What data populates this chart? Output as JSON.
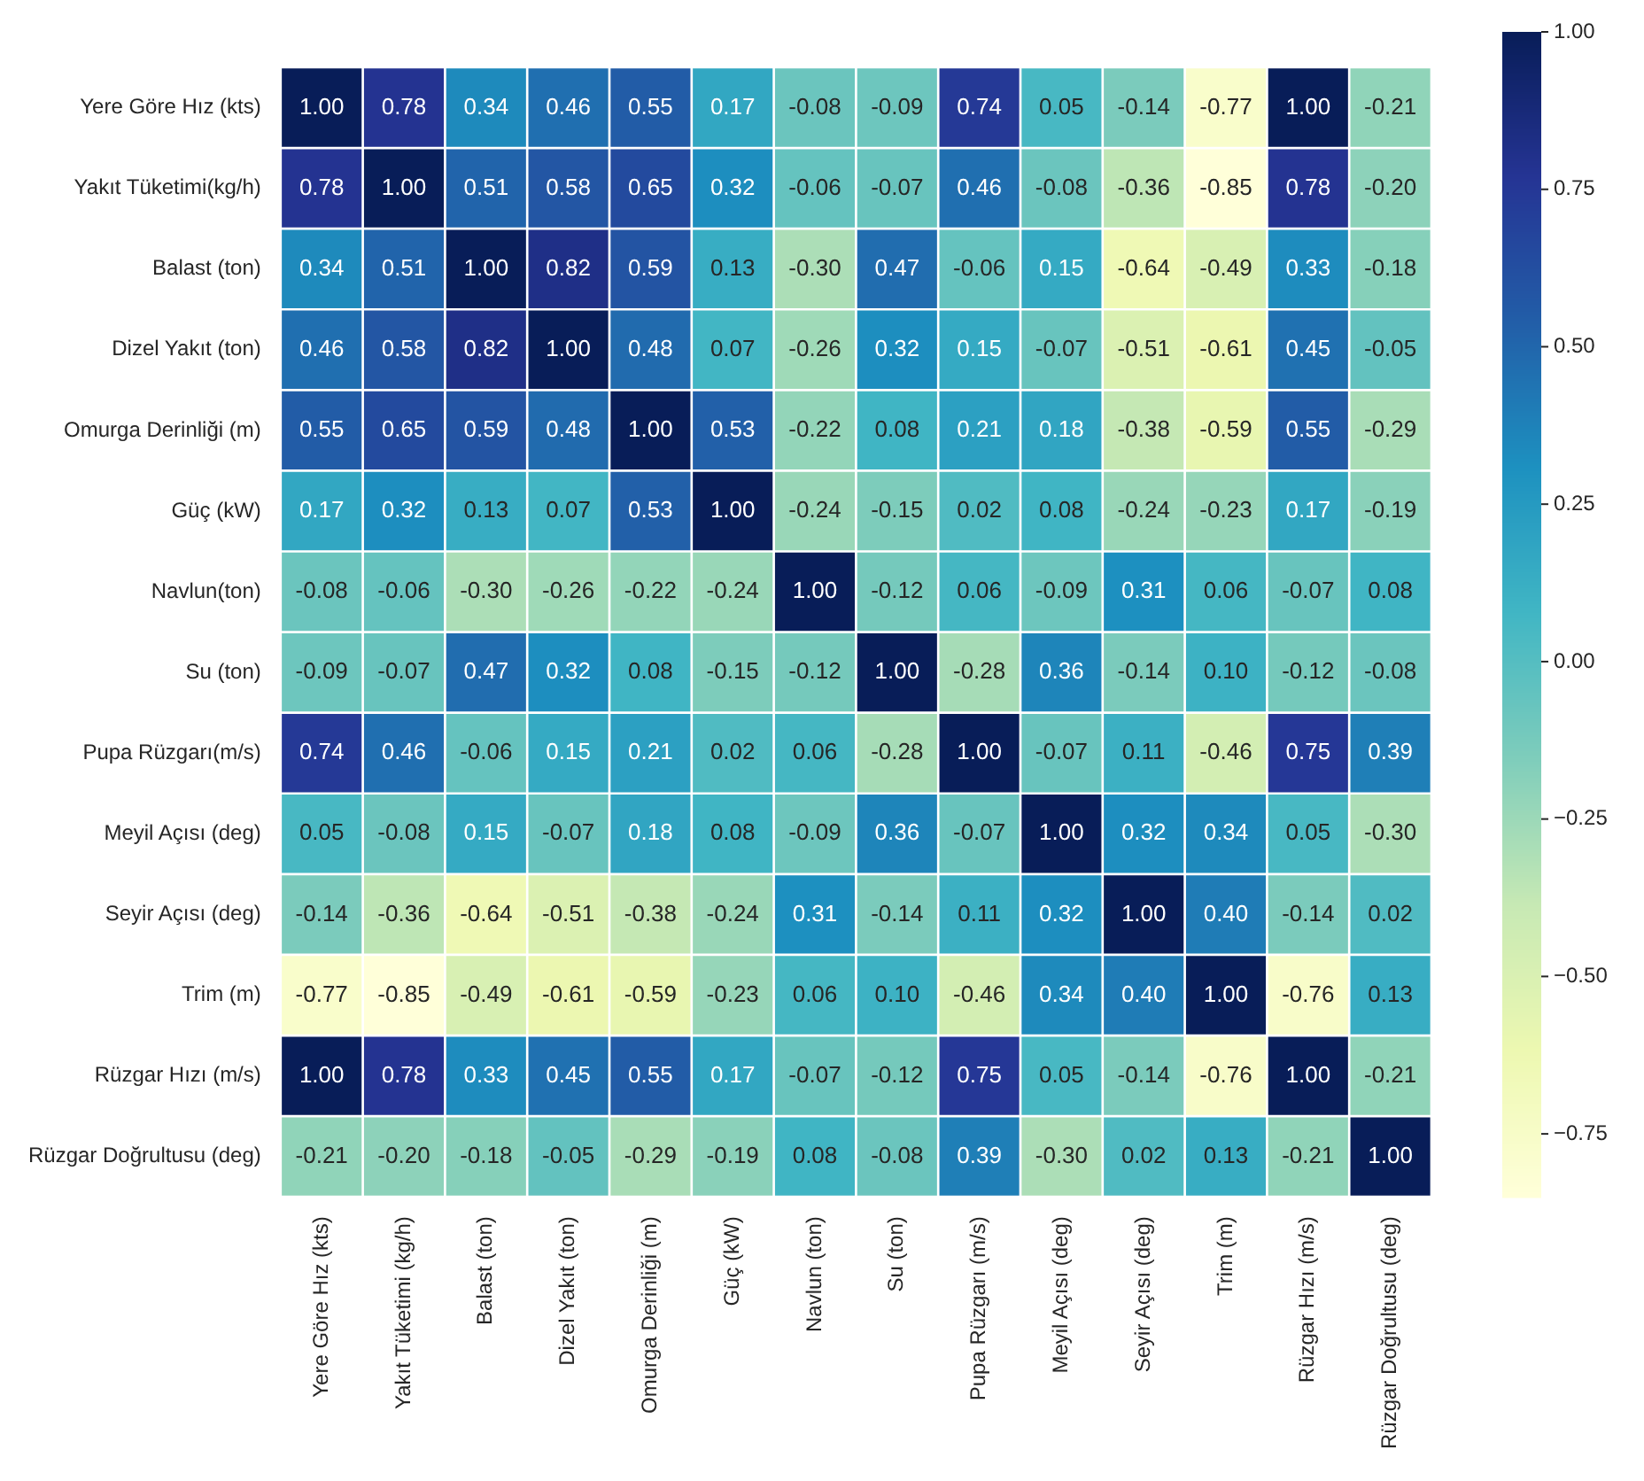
{
  "chart_data": {
    "type": "heatmap",
    "categories": [
      "Yere Göre Hız (kts)",
      "Yakıt Tüketimi (kg/h)",
      "Balast (ton)",
      "Dizel Yakıt (ton)",
      "Omurga Derinliği (m)",
      "Güç (kW)",
      "Navlun (ton)",
      "Su (ton)",
      "Pupa Rüzgarı (m/s)",
      "Meyil Açısı (deg)",
      "Seyir Açısı (deg)",
      "Trim (m)",
      "Rüzgar Hızı (m/s)",
      "Rüzgar Doğrultusu (deg)"
    ],
    "y_categories": [
      "Yere Göre Hız (kts)",
      "Yakıt Tüketimi(kg/h)",
      "Balast (ton)",
      "Dizel Yakıt (ton)",
      "Omurga Derinliği (m)",
      "Güç (kW)",
      "Navlun(ton)",
      "Su (ton)",
      "Pupa Rüzgarı(m/s)",
      "Meyil Açısı (deg)",
      "Seyir Açısı (deg)",
      "Trim (m)",
      "Rüzgar Hızı (m/s)",
      "Rüzgar Doğrultusu (deg)"
    ],
    "cells": [
      [
        1.0,
        0.78,
        0.34,
        0.46,
        0.55,
        0.17,
        -0.08,
        -0.09,
        0.74,
        0.05,
        -0.14,
        -0.77,
        1.0,
        -0.21
      ],
      [
        0.78,
        1.0,
        0.51,
        0.58,
        0.65,
        0.32,
        -0.06,
        -0.07,
        0.46,
        -0.08,
        -0.36,
        -0.85,
        0.78,
        -0.2
      ],
      [
        0.34,
        0.51,
        1.0,
        0.82,
        0.59,
        0.13,
        -0.3,
        0.47,
        -0.06,
        0.15,
        -0.64,
        -0.49,
        0.33,
        -0.18
      ],
      [
        0.46,
        0.58,
        0.82,
        1.0,
        0.48,
        0.07,
        -0.26,
        0.32,
        0.15,
        -0.07,
        -0.51,
        -0.61,
        0.45,
        -0.05
      ],
      [
        0.55,
        0.65,
        0.59,
        0.48,
        1.0,
        0.53,
        -0.22,
        0.08,
        0.21,
        0.18,
        -0.38,
        -0.59,
        0.55,
        -0.29
      ],
      [
        0.17,
        0.32,
        0.13,
        0.07,
        0.53,
        1.0,
        -0.24,
        -0.15,
        0.02,
        0.08,
        -0.24,
        -0.23,
        0.17,
        -0.19
      ],
      [
        -0.08,
        -0.06,
        -0.3,
        -0.26,
        -0.22,
        -0.24,
        1.0,
        -0.12,
        0.06,
        -0.09,
        0.31,
        0.06,
        -0.07,
        0.08
      ],
      [
        -0.09,
        -0.07,
        0.47,
        0.32,
        0.08,
        -0.15,
        -0.12,
        1.0,
        -0.28,
        0.36,
        -0.14,
        0.1,
        -0.12,
        -0.08
      ],
      [
        0.74,
        0.46,
        -0.06,
        0.15,
        0.21,
        0.02,
        0.06,
        -0.28,
        1.0,
        -0.07,
        0.11,
        -0.46,
        0.75,
        0.39
      ],
      [
        0.05,
        -0.08,
        0.15,
        -0.07,
        0.18,
        0.08,
        -0.09,
        0.36,
        -0.07,
        1.0,
        0.32,
        0.34,
        0.05,
        -0.3
      ],
      [
        -0.14,
        -0.36,
        -0.64,
        -0.51,
        -0.38,
        -0.24,
        0.31,
        -0.14,
        0.11,
        0.32,
        1.0,
        0.4,
        -0.14,
        0.02
      ],
      [
        -0.77,
        -0.85,
        -0.49,
        -0.61,
        -0.59,
        -0.23,
        0.06,
        0.1,
        -0.46,
        0.34,
        0.4,
        1.0,
        -0.76,
        0.13
      ],
      [
        1.0,
        0.78,
        0.33,
        0.45,
        0.55,
        0.17,
        -0.07,
        -0.12,
        0.75,
        0.05,
        -0.14,
        -0.76,
        1.0,
        -0.21
      ],
      [
        -0.21,
        -0.2,
        -0.18,
        -0.05,
        -0.29,
        -0.19,
        0.08,
        -0.08,
        0.39,
        -0.3,
        0.02,
        0.13,
        -0.21,
        1.0
      ]
    ],
    "cell_labels": [
      [
        "1.00",
        "0.78",
        "0.34",
        "0.46",
        "0.55",
        "0.17",
        "-0.08",
        "-0.09",
        "0.74",
        "0.05",
        "-0.14",
        "-0.77",
        "1.00",
        "-0.21"
      ],
      [
        "0.78",
        "1.00",
        "0.51",
        "0.58",
        "0.65",
        "0.32",
        "-0.06",
        "-0.07",
        "0.46",
        "-0.08",
        "-0.36",
        "-0.85",
        "0.78",
        "-0.20"
      ],
      [
        "0.34",
        "0.51",
        "1.00",
        "0.82",
        "0.59",
        "0.13",
        "-0.30",
        "0.47",
        "-0.06",
        "0.15",
        "-0.64",
        "-0.49",
        "0.33",
        "-0.18"
      ],
      [
        "0.46",
        "0.58",
        "0.82",
        "1.00",
        "0.48",
        "0.07",
        "-0.26",
        "0.32",
        "0.15",
        "-0.07",
        "-0.51",
        "-0.61",
        "0.45",
        "-0.05"
      ],
      [
        "0.55",
        "0.65",
        "0.59",
        "0.48",
        "1.00",
        "0.53",
        "-0.22",
        "0.08",
        "0.21",
        "0.18",
        "-0.38",
        "-0.59",
        "0.55",
        "-0.29"
      ],
      [
        "0.17",
        "0.32",
        "0.13",
        "0.07",
        "0.53",
        "1.00",
        "-0.24",
        "-0.15",
        "0.02",
        "0.08",
        "-0.24",
        "-0.23",
        "0.17",
        "-0.19"
      ],
      [
        "-0.08",
        "-0.06",
        "-0.30",
        "-0.26",
        "-0.22",
        "-0.24",
        "1.00",
        "-0.12",
        "0.06",
        "-0.09",
        "0.31",
        "0.06",
        "-0.07",
        "0.08"
      ],
      [
        "-0.09",
        "-0.07",
        "0.47",
        "0.32",
        "0.08",
        "-0.15",
        "-0.12",
        "1.00",
        "-0.28",
        "0.36",
        "-0.14",
        "0.10",
        "-0.12",
        "-0.08"
      ],
      [
        "0.74",
        "0.46",
        "-0.06",
        "0.15",
        "0.21",
        "0.02",
        "0.06",
        "-0.28",
        "1.00",
        "-0.07",
        "0.11",
        "-0.46",
        "0.75",
        "0.39"
      ],
      [
        "0.05",
        "-0.08",
        "0.15",
        "-0.07",
        "0.18",
        "0.08",
        "-0.09",
        "0.36",
        "-0.07",
        "1.00",
        "0.32",
        "0.34",
        "0.05",
        "-0.30"
      ],
      [
        "-0.14",
        "-0.36",
        "-0.64",
        "-0.51",
        "-0.38",
        "-0.24",
        "0.31",
        "-0.14",
        "0.11",
        "0.32",
        "1.00",
        "0.40",
        "-0.14",
        "0.02"
      ],
      [
        "-0.77",
        "-0.85",
        "-0.49",
        "-0.61",
        "-0.59",
        "-0.23",
        "0.06",
        "0.10",
        "-0.46",
        "0.34",
        "0.40",
        "1.00",
        "-0.76",
        "0.13"
      ],
      [
        "1.00",
        "0.78",
        "0.33",
        "0.45",
        "0.55",
        "0.17",
        "-0.07",
        "-0.12",
        "0.75",
        "0.05",
        "-0.14",
        "-0.76",
        "1.00",
        "-0.21"
      ],
      [
        "-0.21",
        "-0.20",
        "-0.18",
        "-0.05",
        "-0.29",
        "-0.19",
        "0.08",
        "-0.08",
        "0.39",
        "-0.30",
        "0.02",
        "0.13",
        "-0.21",
        "1.00"
      ]
    ],
    "clim": [
      -0.85,
      1.0
    ],
    "cticks": [
      {
        "value": 1,
        "label": "1.00"
      },
      {
        "value": 0.75,
        "label": "0.75"
      },
      {
        "value": 0.5,
        "label": "0.50"
      },
      {
        "value": 0.25,
        "label": "0.25"
      },
      {
        "value": 0,
        "label": "0.00"
      },
      {
        "value": -0.25,
        "label": "−0.25"
      },
      {
        "value": -0.5,
        "label": "−0.50"
      },
      {
        "value": -0.75,
        "label": "−0.75"
      }
    ]
  }
}
